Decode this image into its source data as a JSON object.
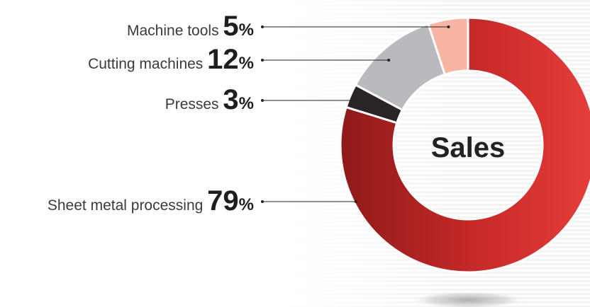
{
  "chart_data": {
    "type": "pie",
    "title": "Sales",
    "unit": "%",
    "series": [
      {
        "label": "Machine tools",
        "value": 5,
        "color": "#f7b4a1"
      },
      {
        "label": "Cutting machines",
        "value": 12,
        "color": "#b9babd"
      },
      {
        "label": "Presses",
        "value": 3,
        "color": "#2a2425"
      },
      {
        "label": "Sheet metal processing",
        "value": 79,
        "color": "#d02a2a"
      }
    ]
  }
}
